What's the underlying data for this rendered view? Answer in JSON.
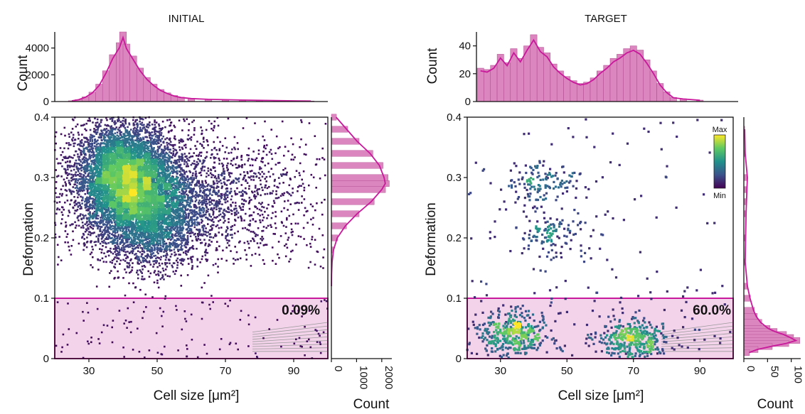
{
  "chart_data": [
    {
      "panel": "left",
      "type": "scatter",
      "title": "INITIAL",
      "xlabel": "Cell size [μm²]",
      "ylabel": "Deformation",
      "xlim": [
        20,
        100
      ],
      "ylim": [
        0,
        0.4
      ],
      "xticks": [
        "30",
        "50",
        "70",
        "90"
      ],
      "yticks": [
        "0",
        "0.1",
        "0.2",
        "0.3",
        "0.4"
      ],
      "gate": {
        "deformation_max": 0.1,
        "label": "0.09%"
      },
      "density_clusters": [
        {
          "x": 40,
          "y": 0.3,
          "n": 6000
        },
        {
          "x": 48,
          "y": 0.24,
          "n": 3000
        },
        {
          "x": 62,
          "y": 0.27,
          "n": 1500
        }
      ],
      "top_hist": {
        "ylabel": "Count",
        "yticks": [
          "0",
          "2000",
          "4000"
        ],
        "ylim": [
          0,
          5200
        ],
        "bins": [
          {
            "x": 25,
            "c": 60
          },
          {
            "x": 27,
            "c": 150
          },
          {
            "x": 29,
            "c": 350
          },
          {
            "x": 31,
            "c": 700
          },
          {
            "x": 33,
            "c": 1300
          },
          {
            "x": 35,
            "c": 2300
          },
          {
            "x": 37,
            "c": 3500
          },
          {
            "x": 39,
            "c": 4400
          },
          {
            "x": 40,
            "c": 5200
          },
          {
            "x": 41,
            "c": 4300
          },
          {
            "x": 43,
            "c": 3400
          },
          {
            "x": 45,
            "c": 2500
          },
          {
            "x": 47,
            "c": 1800
          },
          {
            "x": 49,
            "c": 1300
          },
          {
            "x": 51,
            "c": 900
          },
          {
            "x": 53,
            "c": 650
          },
          {
            "x": 55,
            "c": 450
          },
          {
            "x": 57,
            "c": 330
          },
          {
            "x": 60,
            "c": 240
          },
          {
            "x": 65,
            "c": 180
          },
          {
            "x": 70,
            "c": 150
          },
          {
            "x": 75,
            "c": 120
          },
          {
            "x": 80,
            "c": 100
          },
          {
            "x": 85,
            "c": 80
          },
          {
            "x": 90,
            "c": 60
          },
          {
            "x": 95,
            "c": 40
          }
        ]
      },
      "right_hist": {
        "xlabel": "Count",
        "xticks": [
          "0",
          "1000",
          "2000"
        ],
        "xlim": [
          0,
          2400
        ],
        "bins": [
          {
            "y": 0.4,
            "c": 200
          },
          {
            "y": 0.38,
            "c": 650
          },
          {
            "y": 0.36,
            "c": 1100
          },
          {
            "y": 0.34,
            "c": 1650
          },
          {
            "y": 0.32,
            "c": 2050
          },
          {
            "y": 0.3,
            "c": 2250
          },
          {
            "y": 0.29,
            "c": 2300
          },
          {
            "y": 0.28,
            "c": 2150
          },
          {
            "y": 0.26,
            "c": 1700
          },
          {
            "y": 0.24,
            "c": 1100
          },
          {
            "y": 0.22,
            "c": 600
          },
          {
            "y": 0.2,
            "c": 250
          },
          {
            "y": 0.18,
            "c": 90
          },
          {
            "y": 0.16,
            "c": 30
          },
          {
            "y": 0.14,
            "c": 10
          },
          {
            "y": 0.12,
            "c": 4
          }
        ]
      }
    },
    {
      "panel": "right",
      "type": "scatter",
      "title": "TARGET",
      "xlabel": "Cell size [μm²]",
      "ylabel": "Deformation",
      "xlim": [
        20,
        100
      ],
      "ylim": [
        0,
        0.4
      ],
      "xticks": [
        "30",
        "50",
        "70",
        "90"
      ],
      "yticks": [
        "0",
        "0.1",
        "0.2",
        "0.3",
        "0.4"
      ],
      "gate": {
        "deformation_max": 0.1,
        "label": "60.0%"
      },
      "colorbar": {
        "max_label": "Max",
        "min_label": "Min"
      },
      "density_clusters": [
        {
          "x": 34,
          "y": 0.04,
          "n": 420
        },
        {
          "x": 70,
          "y": 0.032,
          "n": 380
        },
        {
          "x": 42,
          "y": 0.29,
          "n": 140
        },
        {
          "x": 45,
          "y": 0.2,
          "n": 120
        }
      ],
      "top_hist": {
        "ylabel": "Count",
        "yticks": [
          "0",
          "20",
          "40"
        ],
        "ylim": [
          0,
          50
        ],
        "bins": [
          {
            "x": 24,
            "c": 24
          },
          {
            "x": 26,
            "c": 23
          },
          {
            "x": 28,
            "c": 26
          },
          {
            "x": 30,
            "c": 34
          },
          {
            "x": 32,
            "c": 28
          },
          {
            "x": 34,
            "c": 38
          },
          {
            "x": 36,
            "c": 31
          },
          {
            "x": 38,
            "c": 40
          },
          {
            "x": 40,
            "c": 48
          },
          {
            "x": 42,
            "c": 39
          },
          {
            "x": 44,
            "c": 35
          },
          {
            "x": 46,
            "c": 27
          },
          {
            "x": 48,
            "c": 22
          },
          {
            "x": 50,
            "c": 18
          },
          {
            "x": 52,
            "c": 15
          },
          {
            "x": 54,
            "c": 13
          },
          {
            "x": 56,
            "c": 14
          },
          {
            "x": 58,
            "c": 17
          },
          {
            "x": 60,
            "c": 22
          },
          {
            "x": 62,
            "c": 26
          },
          {
            "x": 64,
            "c": 31
          },
          {
            "x": 66,
            "c": 34
          },
          {
            "x": 68,
            "c": 38
          },
          {
            "x": 70,
            "c": 40
          },
          {
            "x": 72,
            "c": 37
          },
          {
            "x": 74,
            "c": 30
          },
          {
            "x": 76,
            "c": 22
          },
          {
            "x": 78,
            "c": 13
          },
          {
            "x": 80,
            "c": 7
          },
          {
            "x": 82,
            "c": 3
          },
          {
            "x": 85,
            "c": 2
          },
          {
            "x": 90,
            "c": 1
          }
        ]
      },
      "right_hist": {
        "xlabel": "Count",
        "xticks": [
          "0",
          "50",
          "100"
        ],
        "xlim": [
          0,
          120
        ],
        "bins": [
          {
            "y": 0.38,
            "c": 2
          },
          {
            "y": 0.34,
            "c": 3
          },
          {
            "y": 0.3,
            "c": 8
          },
          {
            "y": 0.28,
            "c": 7
          },
          {
            "y": 0.26,
            "c": 6
          },
          {
            "y": 0.24,
            "c": 5
          },
          {
            "y": 0.2,
            "c": 4
          },
          {
            "y": 0.16,
            "c": 3
          },
          {
            "y": 0.12,
            "c": 8
          },
          {
            "y": 0.1,
            "c": 14
          },
          {
            "y": 0.08,
            "c": 22
          },
          {
            "y": 0.07,
            "c": 28
          },
          {
            "y": 0.06,
            "c": 38
          },
          {
            "y": 0.05,
            "c": 55
          },
          {
            "y": 0.045,
            "c": 70
          },
          {
            "y": 0.04,
            "c": 90
          },
          {
            "y": 0.035,
            "c": 105
          },
          {
            "y": 0.03,
            "c": 118
          },
          {
            "y": 0.025,
            "c": 95
          },
          {
            "y": 0.02,
            "c": 60
          },
          {
            "y": 0.015,
            "c": 30
          },
          {
            "y": 0.01,
            "c": 12
          }
        ]
      }
    }
  ],
  "colors": {
    "accent": "#c8189b",
    "gate_fill": "#f3d3ea",
    "hist_fill": "#dc86bf"
  }
}
